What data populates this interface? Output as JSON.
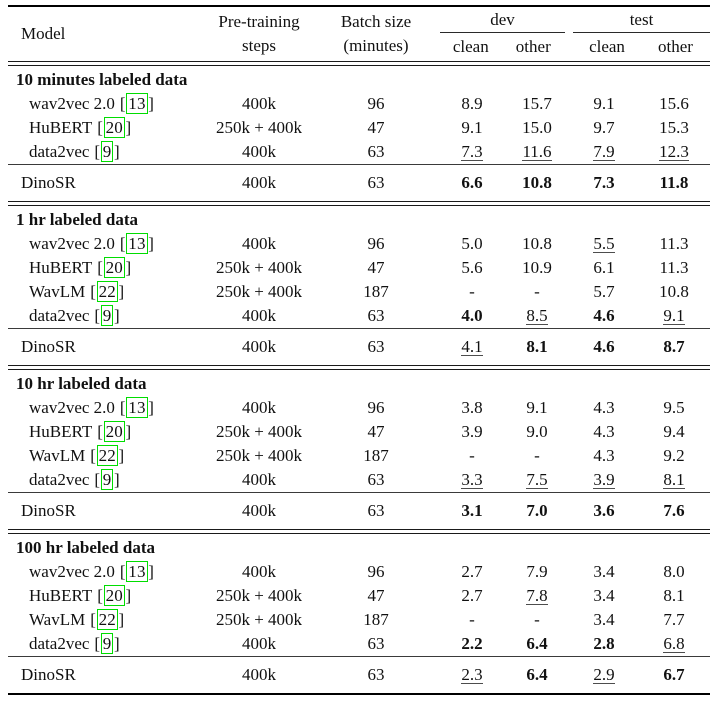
{
  "colors": {
    "citation_box": "#00dd00",
    "rule": "#000000"
  },
  "header": {
    "model": "Model",
    "pretraining": [
      "Pre-training",
      "steps"
    ],
    "batch": [
      "Batch size",
      "(minutes)"
    ],
    "groups": [
      {
        "label": "dev"
      },
      {
        "label": "test"
      }
    ],
    "subcols": [
      "clean",
      "other",
      "clean",
      "other"
    ]
  },
  "sections": [
    {
      "title": "10 minutes labeled data",
      "rows": [
        {
          "model": "wav2vec 2.0",
          "cite": "13",
          "steps": "400k",
          "batch": "96",
          "cells": [
            {
              "v": "8.9",
              "s": "plain"
            },
            {
              "v": "15.7",
              "s": "plain"
            },
            {
              "v": "9.1",
              "s": "plain"
            },
            {
              "v": "15.6",
              "s": "plain"
            }
          ]
        },
        {
          "model": "HuBERT",
          "cite": "20",
          "steps": "250k + 400k",
          "batch": "47",
          "cells": [
            {
              "v": "9.1",
              "s": "plain"
            },
            {
              "v": "15.0",
              "s": "plain"
            },
            {
              "v": "9.7",
              "s": "plain"
            },
            {
              "v": "15.3",
              "s": "plain"
            }
          ]
        },
        {
          "model": "data2vec",
          "cite": "9",
          "steps": "400k",
          "batch": "63",
          "cells": [
            {
              "v": "7.3",
              "s": "underline"
            },
            {
              "v": "11.6",
              "s": "underline"
            },
            {
              "v": "7.9",
              "s": "underline"
            },
            {
              "v": "12.3",
              "s": "underline"
            }
          ]
        }
      ],
      "dinosr": {
        "model": "DinoSR",
        "cite": null,
        "steps": "400k",
        "batch": "63",
        "cells": [
          {
            "v": "6.6",
            "s": "bold"
          },
          {
            "v": "10.8",
            "s": "bold"
          },
          {
            "v": "7.3",
            "s": "bold"
          },
          {
            "v": "11.8",
            "s": "bold"
          }
        ]
      }
    },
    {
      "title": "1 hr labeled data",
      "rows": [
        {
          "model": "wav2vec 2.0",
          "cite": "13",
          "steps": "400k",
          "batch": "96",
          "cells": [
            {
              "v": "5.0",
              "s": "plain"
            },
            {
              "v": "10.8",
              "s": "plain"
            },
            {
              "v": "5.5",
              "s": "underline"
            },
            {
              "v": "11.3",
              "s": "plain"
            }
          ]
        },
        {
          "model": "HuBERT",
          "cite": "20",
          "steps": "250k + 400k",
          "batch": "47",
          "cells": [
            {
              "v": "5.6",
              "s": "plain"
            },
            {
              "v": "10.9",
              "s": "plain"
            },
            {
              "v": "6.1",
              "s": "plain"
            },
            {
              "v": "11.3",
              "s": "plain"
            }
          ]
        },
        {
          "model": "WavLM",
          "cite": "22",
          "steps": "250k + 400k",
          "batch": "187",
          "cells": [
            {
              "v": "-",
              "s": "plain"
            },
            {
              "v": "-",
              "s": "plain"
            },
            {
              "v": "5.7",
              "s": "plain"
            },
            {
              "v": "10.8",
              "s": "plain"
            }
          ]
        },
        {
          "model": "data2vec",
          "cite": "9",
          "steps": "400k",
          "batch": "63",
          "cells": [
            {
              "v": "4.0",
              "s": "bold"
            },
            {
              "v": "8.5",
              "s": "underline"
            },
            {
              "v": "4.6",
              "s": "bold"
            },
            {
              "v": "9.1",
              "s": "underline"
            }
          ]
        }
      ],
      "dinosr": {
        "model": "DinoSR",
        "cite": null,
        "steps": "400k",
        "batch": "63",
        "cells": [
          {
            "v": "4.1",
            "s": "underline"
          },
          {
            "v": "8.1",
            "s": "bold"
          },
          {
            "v": "4.6",
            "s": "bold"
          },
          {
            "v": "8.7",
            "s": "bold"
          }
        ]
      }
    },
    {
      "title": "10 hr labeled data",
      "rows": [
        {
          "model": "wav2vec 2.0",
          "cite": "13",
          "steps": "400k",
          "batch": "96",
          "cells": [
            {
              "v": "3.8",
              "s": "plain"
            },
            {
              "v": "9.1",
              "s": "plain"
            },
            {
              "v": "4.3",
              "s": "plain"
            },
            {
              "v": "9.5",
              "s": "plain"
            }
          ]
        },
        {
          "model": "HuBERT",
          "cite": "20",
          "steps": "250k + 400k",
          "batch": "47",
          "cells": [
            {
              "v": "3.9",
              "s": "plain"
            },
            {
              "v": "9.0",
              "s": "plain"
            },
            {
              "v": "4.3",
              "s": "plain"
            },
            {
              "v": "9.4",
              "s": "plain"
            }
          ]
        },
        {
          "model": "WavLM",
          "cite": "22",
          "steps": "250k + 400k",
          "batch": "187",
          "cells": [
            {
              "v": "-",
              "s": "plain"
            },
            {
              "v": "-",
              "s": "plain"
            },
            {
              "v": "4.3",
              "s": "plain"
            },
            {
              "v": "9.2",
              "s": "plain"
            }
          ]
        },
        {
          "model": "data2vec",
          "cite": "9",
          "steps": "400k",
          "batch": "63",
          "cells": [
            {
              "v": "3.3",
              "s": "underline"
            },
            {
              "v": "7.5",
              "s": "underline"
            },
            {
              "v": "3.9",
              "s": "underline"
            },
            {
              "v": "8.1",
              "s": "underline"
            }
          ]
        }
      ],
      "dinosr": {
        "model": "DinoSR",
        "cite": null,
        "steps": "400k",
        "batch": "63",
        "cells": [
          {
            "v": "3.1",
            "s": "bold"
          },
          {
            "v": "7.0",
            "s": "bold"
          },
          {
            "v": "3.6",
            "s": "bold"
          },
          {
            "v": "7.6",
            "s": "bold"
          }
        ]
      }
    },
    {
      "title": "100 hr labeled data",
      "rows": [
        {
          "model": "wav2vec 2.0",
          "cite": "13",
          "steps": "400k",
          "batch": "96",
          "cells": [
            {
              "v": "2.7",
              "s": "plain"
            },
            {
              "v": "7.9",
              "s": "plain"
            },
            {
              "v": "3.4",
              "s": "plain"
            },
            {
              "v": "8.0",
              "s": "plain"
            }
          ]
        },
        {
          "model": "HuBERT",
          "cite": "20",
          "steps": "250k + 400k",
          "batch": "47",
          "cells": [
            {
              "v": "2.7",
              "s": "plain"
            },
            {
              "v": "7.8",
              "s": "underline"
            },
            {
              "v": "3.4",
              "s": "plain"
            },
            {
              "v": "8.1",
              "s": "plain"
            }
          ]
        },
        {
          "model": "WavLM",
          "cite": "22",
          "steps": "250k + 400k",
          "batch": "187",
          "cells": [
            {
              "v": "-",
              "s": "plain"
            },
            {
              "v": "-",
              "s": "plain"
            },
            {
              "v": "3.4",
              "s": "plain"
            },
            {
              "v": "7.7",
              "s": "plain"
            }
          ]
        },
        {
          "model": "data2vec",
          "cite": "9",
          "steps": "400k",
          "batch": "63",
          "cells": [
            {
              "v": "2.2",
              "s": "bold"
            },
            {
              "v": "6.4",
              "s": "bold"
            },
            {
              "v": "2.8",
              "s": "bold"
            },
            {
              "v": "6.8",
              "s": "underline"
            }
          ]
        }
      ],
      "dinosr": {
        "model": "DinoSR",
        "cite": null,
        "steps": "400k",
        "batch": "63",
        "cells": [
          {
            "v": "2.3",
            "s": "underline"
          },
          {
            "v": "6.4",
            "s": "bold"
          },
          {
            "v": "2.9",
            "s": "underline"
          },
          {
            "v": "6.7",
            "s": "bold"
          }
        ]
      }
    }
  ]
}
